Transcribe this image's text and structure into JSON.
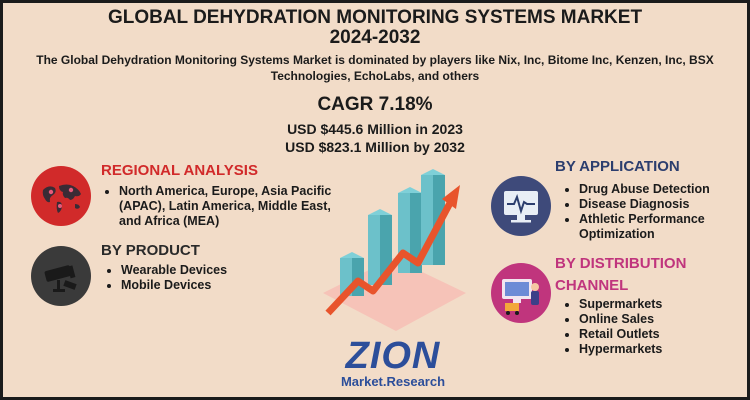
{
  "header": {
    "title_line1": "GLOBAL DEHYDRATION MONITORING SYSTEMS MARKET",
    "title_line2": "2024-2032",
    "subtitle_line1": "The Global Dehydration Monitoring Systems Market is dominated by players like Nix, Inc, Bitome Inc, Kenzen, Inc, BSX",
    "subtitle_line2": "Technologies, EchoLabs, and others"
  },
  "stats": {
    "cagr": "CAGR 7.18%",
    "value_2023": "USD $445.6 Million in 2023",
    "value_2032": "USD $823.1 Million  by 2032"
  },
  "regional": {
    "title": "REGIONAL ANALYSIS",
    "items": [
      "North America, Europe, Asia Pacific (APAC), Latin America, Middle East, and Africa (MEA)"
    ]
  },
  "product": {
    "title": "BY PRODUCT",
    "items": [
      "Wearable Devices",
      "Mobile Devices"
    ]
  },
  "application": {
    "title": "BY APPLICATION",
    "items": [
      "Drug Abuse Detection",
      "Disease Diagnosis",
      "Athletic Performance Optimization"
    ]
  },
  "distribution": {
    "title_line1": "BY DISTRIBUTION",
    "title_line2": "CHANNEL",
    "items": [
      "Supermarkets",
      "Online Sales",
      "Retail Outlets",
      "Hypermarkets"
    ]
  },
  "logo": {
    "big": "ZION",
    "small": "Market.Research"
  },
  "icons": {
    "regional": "world-map-icon",
    "product": "cctv-camera-icon",
    "application": "heart-monitor-icon",
    "distribution": "shopping-icon"
  },
  "colors": {
    "background": "#f2dcc8",
    "regional_accent": "#d12a2a",
    "application_accent": "#2c3e6e",
    "distribution_accent": "#c0357d",
    "brand": "#2c4e9a"
  }
}
